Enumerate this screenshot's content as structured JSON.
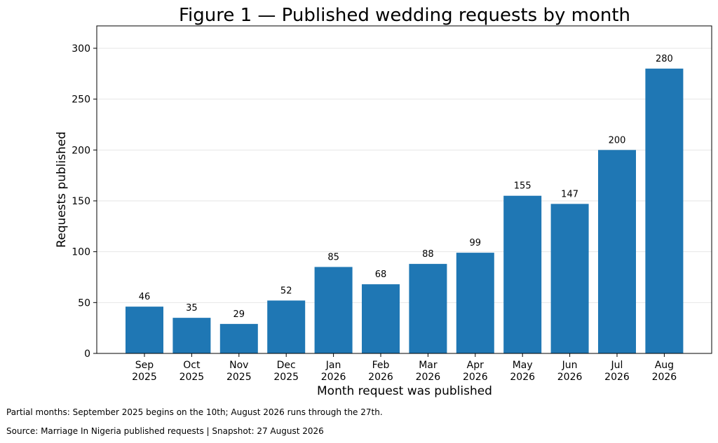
{
  "chart_data": {
    "type": "bar",
    "title": "Figure 1 — Published wedding requests by month",
    "xlabel": "Month request was published",
    "ylabel": "Requests published",
    "categories": [
      [
        "Sep",
        "2025"
      ],
      [
        "Oct",
        "2025"
      ],
      [
        "Nov",
        "2025"
      ],
      [
        "Dec",
        "2025"
      ],
      [
        "Jan",
        "2026"
      ],
      [
        "Feb",
        "2026"
      ],
      [
        "Mar",
        "2026"
      ],
      [
        "Apr",
        "2026"
      ],
      [
        "May",
        "2026"
      ],
      [
        "Jun",
        "2026"
      ],
      [
        "Jul",
        "2026"
      ],
      [
        "Aug",
        "2026"
      ]
    ],
    "values": [
      46,
      35,
      29,
      52,
      85,
      68,
      88,
      99,
      155,
      147,
      200,
      280
    ],
    "ylim": [
      0,
      322
    ],
    "yticks": [
      0,
      50,
      100,
      150,
      200,
      250,
      300
    ],
    "grid": "horizontal",
    "bar_color": "#1f77b4",
    "data_labels": true
  },
  "notes": {
    "partial": "Partial months: September 2025 begins on the 10th; August 2026 runs through the 27th.",
    "source": "Source: Marriage In Nigeria published requests | Snapshot: 27 August 2026"
  }
}
